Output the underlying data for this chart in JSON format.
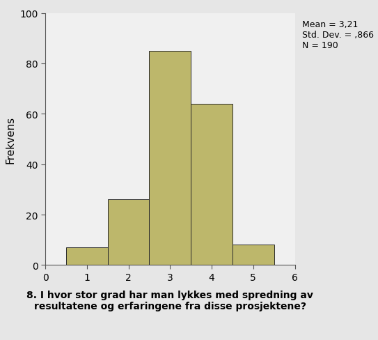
{
  "bar_values": [
    7,
    26,
    85,
    64,
    8
  ],
  "bar_centers": [
    1,
    2,
    3,
    4,
    5
  ],
  "bar_width": 1.0,
  "xlim": [
    0,
    6
  ],
  "ylim": [
    0,
    100
  ],
  "yticks": [
    0,
    20,
    40,
    60,
    80,
    100
  ],
  "xticks": [
    0,
    1,
    2,
    3,
    4,
    5,
    6
  ],
  "bar_color": "#BDB76B",
  "bar_edge_color": "#2a2a2a",
  "bar_edge_width": 0.7,
  "ylabel": "Frekvens",
  "xlabel": "8. I hvor stor grad har man lykkes med spredning av\nresultatene og erfaringene fra disse prosjektene?",
  "stats_text": "Mean = 3,21\nStd. Dev. = ,866\nN = 190",
  "outer_bg_color": "#E6E6E6",
  "plot_bg_color": "#F0F0F0",
  "ylabel_fontsize": 11,
  "xlabel_fontsize": 10,
  "stats_fontsize": 9,
  "tick_fontsize": 10
}
